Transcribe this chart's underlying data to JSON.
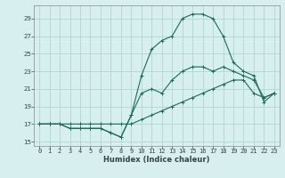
{
  "xlabel": "Humidex (Indice chaleur)",
  "background_color": "#d7efef",
  "grid_color": "#afd4d4",
  "line_color": "#1a6b5a",
  "xlim": [
    -0.5,
    23.5
  ],
  "ylim": [
    14.5,
    30.5
  ],
  "xticks": [
    0,
    1,
    2,
    3,
    4,
    5,
    6,
    7,
    8,
    9,
    10,
    11,
    12,
    13,
    14,
    15,
    16,
    17,
    18,
    19,
    20,
    21,
    22,
    23
  ],
  "yticks": [
    15,
    17,
    19,
    21,
    23,
    25,
    27,
    29
  ],
  "series1_y": [
    17,
    17,
    17,
    17,
    17,
    17,
    17,
    17,
    17,
    17,
    17.5,
    18,
    18.5,
    19,
    19.5,
    20,
    20.5,
    21,
    21.5,
    22,
    22,
    20.5,
    20,
    20.5
  ],
  "series2_y": [
    17,
    17,
    17,
    16.5,
    16.5,
    16.5,
    16.5,
    16,
    15.5,
    18,
    20.5,
    21,
    20.5,
    22,
    23,
    23.5,
    23.5,
    23,
    23.5,
    23,
    22.5,
    22,
    20,
    20.5
  ],
  "series3_y": [
    17,
    17,
    17,
    16.5,
    16.5,
    16.5,
    16.5,
    16,
    15.5,
    18,
    22.5,
    25.5,
    26.5,
    27,
    29,
    29.5,
    29.5,
    29,
    27,
    24,
    23,
    22.5,
    19.5,
    20.5
  ],
  "tick_fontsize": 5,
  "xlabel_fontsize": 6,
  "marker_size": 2.5,
  "line_width": 0.8
}
